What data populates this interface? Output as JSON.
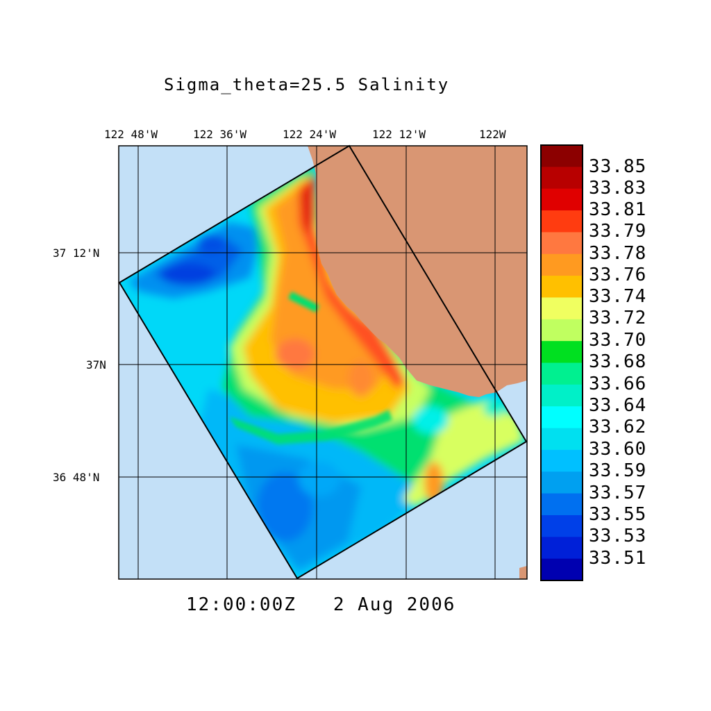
{
  "title": "Sigma_theta=25.5 Salinity",
  "timestamp": "12:00:00Z   2 Aug 2006",
  "axes": {
    "lon_ticks": [
      "122 48'W",
      "122 36'W",
      "122 24'W",
      "122 12'W",
      "122W"
    ],
    "lat_ticks": [
      "37 12'N",
      "37N",
      "36 48'N"
    ]
  },
  "colors": {
    "ocean_background": "#c3e0f7",
    "land": "#d99673"
  },
  "colorbar": {
    "labels": [
      "33.85",
      "33.83",
      "33.81",
      "33.79",
      "33.78",
      "33.76",
      "33.74",
      "33.72",
      "33.70",
      "33.68",
      "33.66",
      "33.64",
      "33.62",
      "33.60",
      "33.59",
      "33.57",
      "33.55",
      "33.53",
      "33.51"
    ],
    "colors": [
      "#8c0000",
      "#b80000",
      "#e00000",
      "#ff3c10",
      "#ff7840",
      "#ff9a20",
      "#ffc000",
      "#f0ff60",
      "#c0ff60",
      "#00e020",
      "#00f090",
      "#00f0c8",
      "#00ffff",
      "#00e0f0",
      "#00c0ff",
      "#00a0f0",
      "#0070f0",
      "#0040e8",
      "#0020d8",
      "#0000b0"
    ]
  }
}
